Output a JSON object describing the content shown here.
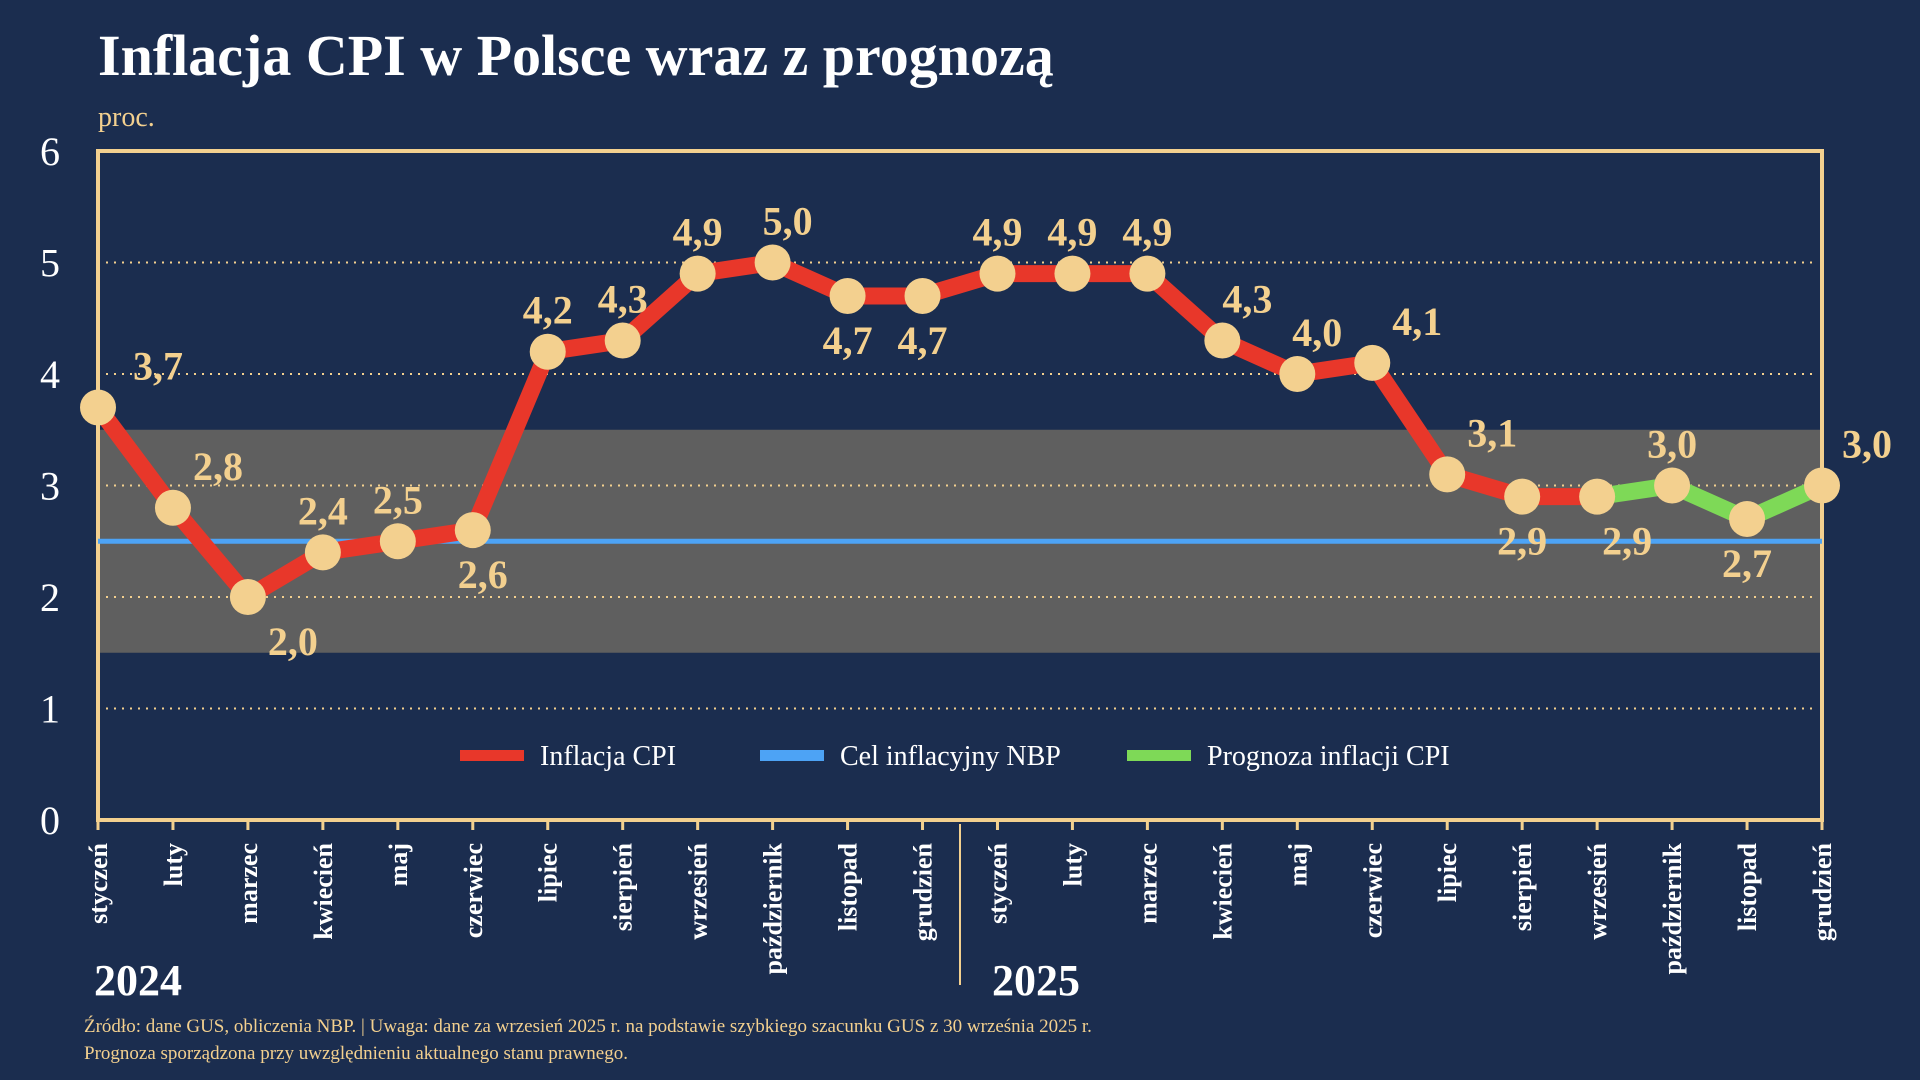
{
  "chart_data": {
    "type": "line",
    "title": "Inflacja CPI w Polsce wraz z prognozą",
    "ylabel": "proc.",
    "ylim": [
      0,
      6
    ],
    "yticks": [
      "0",
      "1",
      "2",
      "3",
      "4",
      "5",
      "6"
    ],
    "grid": "dotted horizontal",
    "categories": [
      "styczeń",
      "luty",
      "marzec",
      "kwiecień",
      "maj",
      "czerwiec",
      "lipiec",
      "sierpień",
      "wrzesień",
      "październik",
      "listopad",
      "grudzień",
      "styczeń",
      "luty",
      "marzec",
      "kwiecień",
      "maj",
      "czerwiec",
      "lipiec",
      "sierpień",
      "wrzesień",
      "październik",
      "listopad",
      "grudzień"
    ],
    "years": [
      "2024",
      "2025"
    ],
    "values": [
      3.7,
      2.8,
      2.0,
      2.4,
      2.5,
      2.6,
      4.2,
      4.3,
      4.9,
      5.0,
      4.7,
      4.7,
      4.9,
      4.9,
      4.9,
      4.3,
      4.0,
      4.1,
      3.1,
      2.9,
      2.9,
      3.0,
      2.7,
      3.0
    ],
    "value_labels": [
      "3,7",
      "2,8",
      "2,0",
      "2,4",
      "2,5",
      "2,6",
      "4,2",
      "4,3",
      "4,9",
      "5,0",
      "4,7",
      "4,7",
      "4,9",
      "4,9",
      "4,9",
      "4,3",
      "4,0",
      "4,1",
      "3,1",
      "2,9",
      "2,9",
      "3,0",
      "2,7",
      "3,0"
    ],
    "actual_last_index": 20,
    "target": 2.5,
    "tolerance_band": [
      1.5,
      3.5
    ],
    "legend_position": "bottom-center",
    "series": [
      {
        "name": "Inflacja CPI",
        "color": "#e8372a"
      },
      {
        "name": "Cel inflacyjny NBP",
        "color": "#4da3f5"
      },
      {
        "name": "Prognoza inflacji CPI",
        "color": "#7ed957"
      }
    ]
  },
  "colors": {
    "background": "#1b2d4f",
    "accent": "#f3d08f",
    "band": "#5f5f5f"
  },
  "footer": {
    "line1": "Źródło: dane GUS, obliczenia NBP.   |   Uwaga: dane za wrzesień 2025 r. na podstawie szybkiego szacunku GUS z 30 września 2025 r.",
    "line2": "Prognoza sporządzona przy uwzględnieniu aktualnego stanu prawnego."
  }
}
